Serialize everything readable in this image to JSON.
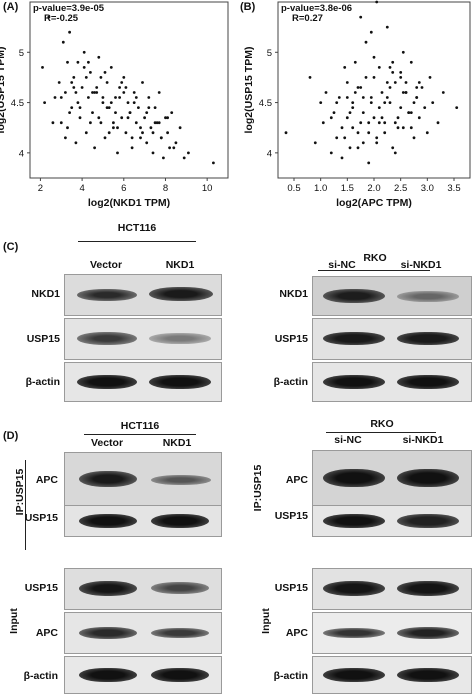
{
  "panels": {
    "A": {
      "label": "(A)",
      "pvalue": "p-value=3.9e-05",
      "r": "R=-0.25",
      "xlabel": "log2(NKD1 TPM)",
      "ylabel": "log2(USP15 TPM)",
      "xticks": [
        "2",
        "4",
        "6",
        "8",
        "10"
      ],
      "yticks": [
        "4",
        "4.5",
        "5"
      ]
    },
    "B": {
      "label": "(B)",
      "pvalue": "p-value=3.8e-06",
      "r": "R=0.27",
      "xlabel": "log2(APC TPM)",
      "ylabel": "log2(USP15 TPM)",
      "xticks": [
        "0.5",
        "1.0",
        "1.5",
        "2.0",
        "2.5",
        "3.0",
        "3.5"
      ],
      "yticks": [
        "4",
        "4.5",
        "5"
      ]
    },
    "C": {
      "label": "(C)",
      "left": {
        "cell_line": "HCT116",
        "lanes": [
          "Vector",
          "NKD1"
        ],
        "rows": [
          "NKD1",
          "USP15",
          "β-actin"
        ]
      },
      "right": {
        "cell_line": "RKO",
        "lanes": [
          "si-NC",
          "si-NKD1"
        ],
        "rows": [
          "NKD1",
          "USP15",
          "β-actin"
        ]
      }
    },
    "D": {
      "label": "(D)",
      "left": {
        "cell_line": "HCT116",
        "lanes": [
          "Vector",
          "NKD1"
        ],
        "ip_label": "IP:USP15",
        "ip_rows": [
          "APC",
          "USP15"
        ],
        "input_label": "Input",
        "input_rows": [
          "USP15",
          "APC",
          "β-actin"
        ]
      },
      "right": {
        "cell_line": "RKO",
        "lanes": [
          "si-NC",
          "si-NKD1"
        ],
        "ip_label": "IP:USP15",
        "ip_rows": [
          "APC",
          "USP15"
        ],
        "input_label": "Input",
        "input_rows": [
          "USP15",
          "APC",
          "β-actin"
        ]
      }
    }
  },
  "chart_data": [
    {
      "type": "scatter",
      "title": "",
      "annotations": [
        "p-value=3.9e-05",
        "R=-0.25"
      ],
      "xlabel": "log2(NKD1 TPM)",
      "ylabel": "log2(USP15 TPM)",
      "xlim": [
        1.5,
        11
      ],
      "ylim": [
        3.75,
        5.5
      ],
      "x": [
        2.1,
        2.4,
        2.7,
        2.9,
        3.0,
        3.1,
        3.2,
        3.3,
        3.4,
        3.5,
        3.6,
        3.7,
        3.8,
        3.9,
        4.0,
        4.1,
        4.2,
        4.3,
        4.4,
        4.5,
        4.6,
        4.7,
        4.8,
        4.9,
        5.0,
        5.1,
        5.2,
        5.3,
        5.4,
        5.5,
        5.6,
        5.7,
        5.8,
        5.9,
        6.0,
        6.1,
        6.2,
        6.3,
        6.4,
        6.5,
        6.6,
        6.7,
        6.8,
        6.9,
        7.0,
        7.1,
        7.2,
        7.3,
        7.4,
        7.5,
        7.6,
        7.7,
        7.8,
        7.9,
        8.0,
        8.1,
        8.2,
        8.3,
        8.5,
        8.7,
        8.9,
        9.1,
        10.3,
        2.2,
        2.6,
        3.0,
        3.3,
        3.6,
        3.9,
        4.2,
        4.5,
        4.8,
        5.1,
        5.4,
        5.7,
        6.0,
        6.3,
        6.6,
        6.9,
        7.2,
        7.5,
        7.8,
        8.1,
        8.4,
        3.2,
        3.5,
        3.8,
        4.1,
        4.4,
        4.7,
        5.0,
        5.3,
        5.6,
        5.9,
        6.2,
        6.5,
        6.8,
        7.1,
        7.4,
        7.7,
        4.3,
        4.6,
        4.9,
        5.2,
        5.5,
        5.8,
        6.1,
        6.4,
        3.4,
        3.7
      ],
      "y": [
        4.85,
        5.35,
        4.55,
        4.7,
        4.3,
        5.1,
        4.6,
        4.25,
        5.2,
        4.45,
        4.75,
        4.1,
        4.9,
        4.35,
        4.65,
        5.0,
        4.2,
        4.55,
        4.8,
        4.4,
        4.05,
        4.6,
        4.95,
        4.3,
        4.5,
        4.15,
        4.7,
        4.45,
        4.85,
        4.25,
        4.55,
        4.0,
        4.65,
        4.35,
        4.75,
        4.2,
        4.5,
        4.4,
        4.05,
        4.6,
        4.3,
        4.45,
        4.15,
        4.7,
        4.35,
        4.1,
        4.55,
        4.25,
        4.0,
        4.45,
        4.3,
        4.6,
        4.15,
        3.95,
        4.35,
        4.2,
        4.05,
        4.4,
        4.1,
        4.25,
        3.95,
        4.0,
        3.9,
        4.5,
        4.3,
        4.55,
        4.9,
        4.65,
        4.45,
        4.75,
        4.6,
        4.35,
        4.8,
        4.5,
        4.25,
        4.6,
        4.4,
        4.55,
        4.2,
        4.45,
        4.3,
        4.15,
        4.35,
        4.05,
        4.15,
        4.7,
        4.5,
        4.85,
        4.3,
        4.65,
        4.55,
        4.2,
        4.4,
        4.7,
        4.35,
        4.5,
        4.25,
        4.4,
        4.2,
        4.3,
        4.9,
        4.6,
        4.75,
        4.45,
        4.3,
        4.55,
        4.65,
        4.15,
        4.4,
        4.6
      ]
    },
    {
      "type": "scatter",
      "title": "",
      "annotations": [
        "p-value=3.8e-06",
        "R=0.27"
      ],
      "xlabel": "log2(APC TPM)",
      "ylabel": "log2(USP15 TPM)",
      "xlim": [
        0.2,
        3.8
      ],
      "ylim": [
        3.75,
        5.5
      ],
      "x": [
        0.35,
        0.8,
        0.9,
        1.0,
        1.05,
        1.1,
        1.2,
        1.25,
        1.3,
        1.35,
        1.4,
        1.45,
        1.5,
        1.55,
        1.6,
        1.65,
        1.7,
        1.75,
        1.8,
        1.85,
        1.9,
        1.95,
        2.0,
        2.05,
        2.1,
        2.15,
        2.2,
        2.25,
        2.3,
        2.35,
        2.4,
        2.45,
        2.5,
        2.55,
        2.6,
        2.65,
        2.7,
        2.75,
        2.8,
        2.85,
        2.9,
        2.95,
        3.0,
        3.05,
        3.1,
        3.2,
        3.3,
        3.55,
        1.3,
        1.4,
        1.5,
        1.6,
        1.7,
        1.8,
        1.9,
        2.0,
        2.1,
        2.2,
        2.3,
        2.4,
        2.5,
        2.6,
        2.7,
        2.8,
        1.45,
        1.55,
        1.65,
        1.75,
        1.85,
        1.95,
        2.05,
        2.15,
        2.25,
        2.35,
        2.45,
        2.55,
        2.65,
        2.75,
        2.85,
        1.2,
        1.6,
        2.0,
        2.4,
        2.8,
        1.5,
        1.9,
        2.3,
        2.7,
        1.7,
        2.1,
        2.5,
        1.8,
        2.2,
        2.6,
        1.75,
        2.05,
        2.35,
        1.95,
        2.25,
        2.55
      ],
      "y": [
        4.2,
        4.75,
        4.1,
        4.5,
        4.3,
        4.6,
        4.0,
        4.4,
        4.15,
        4.55,
        4.25,
        4.85,
        4.35,
        4.05,
        4.5,
        4.9,
        4.2,
        4.65,
        4.4,
        5.1,
        4.3,
        4.55,
        4.75,
        4.15,
        4.45,
        4.6,
        4.3,
        5.25,
        4.5,
        4.05,
        4.7,
        4.35,
        4.8,
        4.25,
        4.6,
        4.4,
        4.9,
        4.15,
        4.55,
        4.35,
        4.65,
        4.45,
        4.2,
        4.75,
        4.5,
        4.3,
        4.6,
        4.45,
        4.5,
        3.95,
        4.7,
        4.25,
        4.05,
        4.55,
        3.9,
        4.35,
        4.85,
        4.2,
        4.65,
        4.0,
        4.45,
        4.7,
        4.25,
        4.55,
        4.15,
        4.4,
        4.6,
        4.3,
        4.75,
        4.5,
        4.1,
        4.35,
        4.55,
        4.8,
        4.25,
        4.6,
        4.4,
        4.5,
        4.7,
        4.35,
        4.45,
        4.95,
        4.3,
        4.65,
        4.55,
        4.2,
        4.85,
        4.4,
        4.65,
        4.3,
        4.75,
        4.1,
        4.5,
        4.6,
        5.35,
        5.5,
        4.9,
        5.2,
        4.7,
        5.0
      ]
    }
  ]
}
